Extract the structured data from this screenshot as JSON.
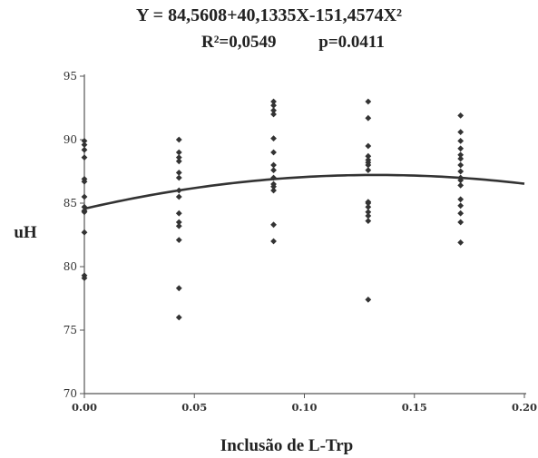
{
  "chart_data": {
    "type": "scatter",
    "title_lines": [
      "Y = 84,5608+40,1335X-151,4574X²",
      "R²=0,0549",
      "p=0.0411"
    ],
    "xlabel": "Inclusão de L-Trp",
    "ylabel": "uH",
    "xlim": [
      0.0,
      0.2
    ],
    "ylim": [
      70,
      95
    ],
    "xticks": [
      "0.00",
      "0.05",
      "0.10",
      "0.15",
      "0.20"
    ],
    "yticks": [
      "70",
      "75",
      "80",
      "85",
      "90",
      "95"
    ],
    "xtick_values": [
      0.0,
      0.05,
      0.1,
      0.15,
      0.2
    ],
    "ytick_values": [
      70,
      75,
      80,
      85,
      90,
      95
    ],
    "grid": false,
    "series": [
      {
        "type": "scatter",
        "x": [
          0,
          0,
          0,
          0,
          0,
          0,
          0,
          0,
          0,
          0,
          0,
          0,
          0,
          0.043,
          0.043,
          0.043,
          0.043,
          0.043,
          0.043,
          0.043,
          0.043,
          0.043,
          0.043,
          0.043,
          0.043,
          0.043,
          0.043,
          0.086,
          0.086,
          0.086,
          0.086,
          0.086,
          0.086,
          0.086,
          0.086,
          0.086,
          0.086,
          0.086,
          0.086,
          0.086,
          0.086,
          0.129,
          0.129,
          0.129,
          0.129,
          0.129,
          0.129,
          0.129,
          0.129,
          0.129,
          0.129,
          0.129,
          0.129,
          0.129,
          0.129,
          0.129,
          0.171,
          0.171,
          0.171,
          0.171,
          0.171,
          0.171,
          0.171,
          0.171,
          0.171,
          0.171,
          0.171,
          0.171,
          0.171,
          0.171,
          0.171,
          0.171
        ],
        "y": [
          89.9,
          89.6,
          89.2,
          88.6,
          86.9,
          86.7,
          85.5,
          84.7,
          84.4,
          84.3,
          82.7,
          79.3,
          79.1,
          90.0,
          88.6,
          88.3,
          87.4,
          87.0,
          86.0,
          85.5,
          84.2,
          83.5,
          83.2,
          82.1,
          78.3,
          76.0,
          89.0,
          93.0,
          92.7,
          92.3,
          92.0,
          90.1,
          89.0,
          88.0,
          87.6,
          87.0,
          86.5,
          86.3,
          83.3,
          82.0,
          86.0,
          93.0,
          91.7,
          89.5,
          88.7,
          88.4,
          88.0,
          87.6,
          85.0,
          84.7,
          84.3,
          84.0,
          83.6,
          77.4,
          88.2,
          85.1,
          91.9,
          90.6,
          89.9,
          89.3,
          88.5,
          88.0,
          87.5,
          87.0,
          86.4,
          85.3,
          84.8,
          84.2,
          83.5,
          81.9,
          88.8,
          86.8
        ],
        "marker": "diamond",
        "color": "#333333"
      },
      {
        "type": "line",
        "equation": "84.5608+40.1335*x-151.4574*x^2",
        "x_range": [
          0.0,
          0.2
        ],
        "color": "#333333"
      }
    ]
  }
}
